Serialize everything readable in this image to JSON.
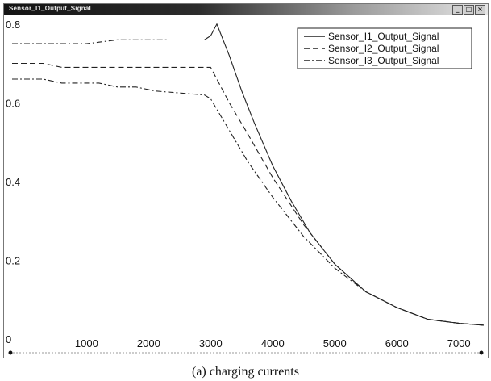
{
  "window": {
    "title": "Sensor_I1_Output_Signal"
  },
  "caption": "(a) charging currents",
  "chart_data": {
    "type": "line",
    "title": "",
    "xlabel": "",
    "ylabel": "",
    "xlim": [
      -200,
      7400
    ],
    "ylim": [
      0,
      0.82
    ],
    "grid": false,
    "legend_position": "top-right",
    "x_ticks": [
      0,
      1000,
      2000,
      3000,
      4000,
      5000,
      6000,
      7000
    ],
    "y_ticks": [
      0,
      0.2,
      0.4,
      0.6,
      0.8
    ],
    "series": [
      {
        "name": "Sensor_I1_Output_Signal",
        "style": "solid",
        "color": "#222222",
        "x": [
          2900,
          3000,
          3100,
          3300,
          3500,
          3700,
          4000,
          4300,
          4600,
          5000,
          5500,
          6000,
          6500,
          7000,
          7400
        ],
        "y": [
          0.76,
          0.77,
          0.8,
          0.72,
          0.63,
          0.55,
          0.44,
          0.35,
          0.27,
          0.19,
          0.12,
          0.08,
          0.05,
          0.04,
          0.035
        ]
      },
      {
        "name": "Sensor_I2_Output_Signal",
        "style": "dashed",
        "color": "#222222",
        "x": [
          -200,
          0,
          300,
          600,
          900,
          1200,
          1500,
          1800,
          2900,
          3000,
          3300,
          3600,
          4000,
          4500,
          5000,
          5500,
          6000,
          6500,
          7000,
          7400
        ],
        "y": [
          0.7,
          0.7,
          0.7,
          0.69,
          0.69,
          0.69,
          0.69,
          0.69,
          0.69,
          0.69,
          0.6,
          0.52,
          0.41,
          0.29,
          0.19,
          0.12,
          0.08,
          0.05,
          0.04,
          0.035
        ]
      },
      {
        "name": "Sensor_I3_Output_Signal",
        "style": "dashdot",
        "color": "#222222",
        "x": [
          -200,
          0,
          300,
          600,
          900,
          1200,
          1500,
          1800,
          2100,
          2900,
          3000,
          3300,
          3600,
          4000,
          4500,
          5000,
          5500,
          6000,
          6500,
          7000,
          7400
        ],
        "y": [
          0.66,
          0.66,
          0.66,
          0.65,
          0.65,
          0.65,
          0.64,
          0.64,
          0.63,
          0.62,
          0.61,
          0.53,
          0.45,
          0.36,
          0.26,
          0.18,
          0.12,
          0.08,
          0.05,
          0.04,
          0.035
        ]
      },
      {
        "name": "",
        "style": "dashdot",
        "color": "#222222",
        "x": [
          -200,
          0,
          500,
          1000,
          1500,
          2000,
          2300
        ],
        "y": [
          0.75,
          0.75,
          0.75,
          0.75,
          0.76,
          0.76,
          0.76
        ]
      }
    ]
  }
}
